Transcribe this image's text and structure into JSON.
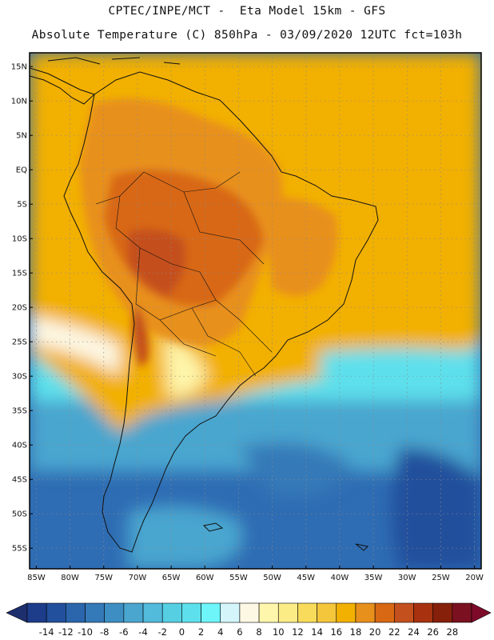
{
  "header": {
    "line1": "CPTEC/INPE/MCT -  Eta Model 15km - GFS",
    "line2": "Absolute Temperature (C) 850hPa - 03/09/2020 12UTC fct=103h"
  },
  "map": {
    "region": "South America",
    "variable": "Absolute Temperature (C) at 850hPa",
    "lat_ticks": [
      "15N",
      "10N",
      "5N",
      "EQ",
      "5S",
      "10S",
      "15S",
      "20S",
      "25S",
      "30S",
      "35S",
      "40S",
      "45S",
      "50S",
      "55S"
    ],
    "lon_ticks": [
      "85W",
      "80W",
      "75W",
      "70W",
      "65W",
      "60W",
      "55W",
      "50W",
      "45W",
      "40W",
      "35W",
      "30W",
      "25W",
      "20W"
    ],
    "lat_values": [
      15,
      10,
      5,
      0,
      -5,
      -10,
      -15,
      -20,
      -25,
      -30,
      -35,
      -40,
      -45,
      -50,
      -55
    ],
    "lon_values": [
      -85,
      -80,
      -75,
      -70,
      -65,
      -60,
      -55,
      -50,
      -45,
      -40,
      -35,
      -30,
      -25,
      -20
    ],
    "lon_range": [
      -86,
      -19
    ],
    "lat_range": [
      -58,
      17
    ]
  },
  "colorbar": {
    "labels": [
      "-14",
      "-12",
      "-10",
      "-8",
      "-6",
      "-4",
      "-2",
      "0",
      "2",
      "4",
      "6",
      "8",
      "10",
      "12",
      "14",
      "16",
      "18",
      "20",
      "22",
      "24",
      "26",
      "28"
    ],
    "colors": [
      "#1d3c8a",
      "#22509c",
      "#2b66ad",
      "#3479b8",
      "#3d8fc3",
      "#4aa6cf",
      "#52bada",
      "#56cfe3",
      "#5de0ec",
      "#6df5fa",
      "#d4f6fb",
      "#fdf8e4",
      "#fef6ab",
      "#fcec86",
      "#f8db5a",
      "#f4c63c",
      "#f2b000",
      "#e8901c",
      "#d86814",
      "#c4501e",
      "#a8320f",
      "#86200b",
      "#7a1020"
    ],
    "under_color": "#1e2f6e",
    "over_color": "#7e0a2a"
  }
}
